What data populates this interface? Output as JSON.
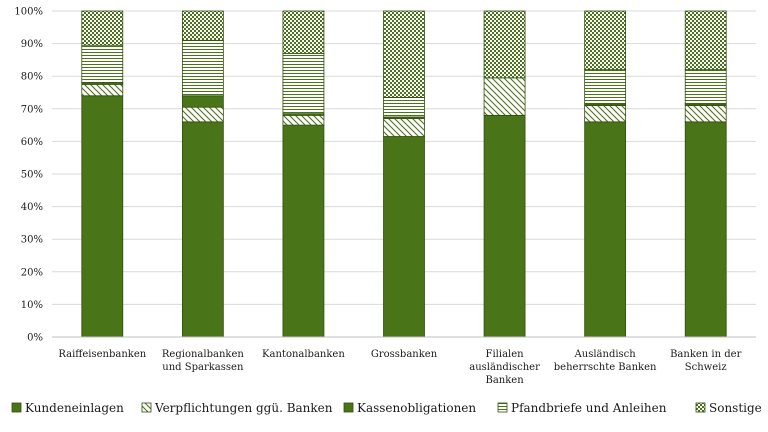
{
  "chart_data": {
    "type": "bar",
    "stacked": true,
    "title": "",
    "xlabel": "",
    "ylabel": "",
    "ylim": [
      0,
      100
    ],
    "yticks": [
      "0%",
      "10%",
      "20%",
      "30%",
      "40%",
      "50%",
      "60%",
      "70%",
      "80%",
      "90%",
      "100%"
    ],
    "grid": true,
    "legend_position": "bottom",
    "categories": [
      [
        "Raiffeisenbanken"
      ],
      [
        "Regionalbanken",
        "und Sparkassen"
      ],
      [
        "Kantonalbanken"
      ],
      [
        "Grossbanken"
      ],
      [
        "Filialen",
        "ausländischer",
        "Banken"
      ],
      [
        "Ausländisch",
        "beherrschte Banken"
      ],
      [
        "Banken in der",
        "Schweiz"
      ]
    ],
    "series": [
      {
        "name": "Kundeneinlagen",
        "pattern": "solid",
        "values": [
          74,
          66,
          65,
          61.5,
          68,
          66,
          66
        ]
      },
      {
        "name": "Verpflichtungen ggü. Banken",
        "pattern": "diagonal",
        "values": [
          3.5,
          4.5,
          3,
          5.5,
          11.5,
          5,
          5
        ]
      },
      {
        "name": "Kassenobligationen",
        "pattern": "solid",
        "values": [
          0.5,
          3.5,
          0.5,
          0.5,
          0,
          0.5,
          0.5
        ]
      },
      {
        "name": "Pfandbriefe und Anleihen",
        "pattern": "horizontal",
        "values": [
          11.5,
          17,
          18.5,
          6,
          0,
          10.5,
          10.5
        ]
      },
      {
        "name": "Sonstige",
        "pattern": "checker",
        "values": [
          10.5,
          9,
          13,
          26.5,
          20.5,
          18,
          18
        ]
      }
    ],
    "colors": {
      "green": "#4a7418",
      "stroke": "#2f4f0e"
    }
  }
}
